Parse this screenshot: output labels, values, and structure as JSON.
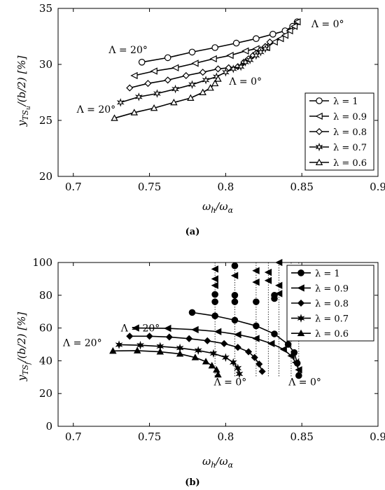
{
  "chart_data": [
    {
      "type": "line",
      "panel": "a",
      "caption": "(a)",
      "xlabel": "ω_h/ω_α",
      "ylabel": "y_TS_u/(b/2) [%]",
      "xlim": [
        0.69,
        0.9
      ],
      "ylim": [
        20,
        35
      ],
      "xticks": [
        0.7,
        0.75,
        0.8,
        0.85,
        0.9
      ],
      "xtick_labels": [
        "0.7",
        "0.75",
        "0.8",
        "0.85",
        "0.9"
      ],
      "yticks": [
        20,
        25,
        30,
        35
      ],
      "ytick_labels": [
        "20",
        "25",
        "30",
        "35"
      ],
      "legend_position": "center-right",
      "annotations": [
        {
          "text": "Λ = 20°",
          "x": 0.736,
          "y": 31.0
        },
        {
          "text": "Λ = 0°",
          "x": 0.867,
          "y": 33.3
        },
        {
          "text": "Λ = 0°",
          "x": 0.813,
          "y": 28.2
        },
        {
          "text": "Λ = 20°",
          "x": 0.715,
          "y": 25.7
        }
      ],
      "series": [
        {
          "name": "λ = 1",
          "marker": "circle",
          "x": [
            0.745,
            0.762,
            0.778,
            0.793,
            0.807,
            0.82,
            0.831,
            0.839,
            0.844,
            0.847
          ],
          "y": [
            30.2,
            30.6,
            31.1,
            31.5,
            31.9,
            32.3,
            32.7,
            33.0,
            33.4,
            33.8
          ]
        },
        {
          "name": "λ = 0.9",
          "marker": "triangle-left",
          "x": [
            0.74,
            0.753,
            0.767,
            0.78,
            0.792,
            0.803,
            0.813,
            0.82,
            0.827,
            0.832,
            0.836,
            0.839,
            0.842,
            0.845,
            0.847
          ],
          "y": [
            29.0,
            29.4,
            29.7,
            30.1,
            30.5,
            30.8,
            31.2,
            31.4,
            31.5,
            32.0,
            32.3,
            32.6,
            33.0,
            33.4,
            33.8
          ]
        },
        {
          "name": "λ = 0.8",
          "marker": "diamond",
          "x": [
            0.737,
            0.749,
            0.762,
            0.774,
            0.785,
            0.795,
            0.802,
            0.808,
            0.812,
            0.815,
            0.818,
            0.82,
            0.823,
            0.826,
            0.829
          ],
          "y": [
            27.9,
            28.3,
            28.6,
            29.0,
            29.3,
            29.6,
            29.7,
            29.8,
            30.2,
            30.5,
            30.8,
            31.0,
            31.3,
            31.6,
            32.0
          ]
        },
        {
          "name": "λ = 0.7",
          "marker": "hexstar",
          "x": [
            0.731,
            0.743,
            0.755,
            0.767,
            0.778,
            0.787,
            0.794,
            0.8,
            0.805,
            0.81,
            0.813,
            0.816,
            0.82,
            0.823,
            0.826
          ],
          "y": [
            26.6,
            27.1,
            27.4,
            27.8,
            28.2,
            28.6,
            28.9,
            29.3,
            29.6,
            29.8,
            30.2,
            30.4,
            30.8,
            31.1,
            31.4
          ]
        },
        {
          "name": "λ = 0.6",
          "marker": "triangle-up",
          "x": [
            0.727,
            0.74,
            0.753,
            0.766,
            0.777,
            0.785,
            0.79,
            0.793,
            0.795
          ],
          "y": [
            25.2,
            25.7,
            26.1,
            26.6,
            27.0,
            27.5,
            27.9,
            28.3,
            28.7
          ]
        }
      ]
    },
    {
      "type": "line",
      "panel": "b",
      "caption": "(b)",
      "xlabel": "ω_h/ω_α",
      "ylabel": "y_TS_f/(b/2) [%]",
      "xlim": [
        0.69,
        0.9
      ],
      "ylim": [
        0,
        100
      ],
      "xticks": [
        0.7,
        0.75,
        0.8,
        0.85,
        0.9
      ],
      "xtick_labels": [
        "0.7",
        "0.75",
        "0.8",
        "0.85",
        "0.9"
      ],
      "yticks": [
        0,
        20,
        40,
        60,
        80,
        100
      ],
      "ytick_labels": [
        "0",
        "20",
        "40",
        "60",
        "80",
        "100"
      ],
      "legend_position": "top-right",
      "annotations": [
        {
          "text": "Λ = 20°",
          "x": 0.744,
          "y": 58
        },
        {
          "text": "Λ = 20°",
          "x": 0.706,
          "y": 49
        },
        {
          "text": "Λ = 0°",
          "x": 0.803,
          "y": 25
        },
        {
          "text": "Λ = 0°",
          "x": 0.852,
          "y": 25
        }
      ],
      "series": [
        {
          "name": "λ = 1",
          "marker": "circle",
          "x": [
            0.778,
            0.793,
            0.806,
            0.82,
            0.832,
            0.841,
            0.845,
            0.847,
            0.848
          ],
          "y": [
            69.5,
            67.4,
            64.8,
            61.3,
            56.4,
            50.0,
            45.0,
            38.5,
            31.0
          ]
        },
        {
          "name": "λ = 0.9",
          "marker": "triangle-left",
          "x": [
            0.741,
            0.762,
            0.78,
            0.795,
            0.808,
            0.82,
            0.83,
            0.838,
            0.843,
            0.846,
            0.848
          ],
          "y": [
            60.0,
            59.8,
            59.0,
            57.8,
            56.0,
            53.6,
            50.5,
            47.0,
            43.0,
            39.0,
            34.5
          ]
        },
        {
          "name": "λ = 0.8",
          "marker": "diamond",
          "x": [
            0.737,
            0.75,
            0.763,
            0.776,
            0.788,
            0.799,
            0.808,
            0.815,
            0.819,
            0.822,
            0.824
          ],
          "y": [
            55.0,
            55.0,
            54.5,
            53.5,
            52.2,
            50.5,
            48.2,
            45.5,
            42.0,
            38.0,
            33.5
          ]
        },
        {
          "name": "λ = 0.7",
          "marker": "hexstar",
          "x": [
            0.73,
            0.744,
            0.757,
            0.77,
            0.782,
            0.792,
            0.8,
            0.805,
            0.808,
            0.809
          ],
          "y": [
            49.8,
            49.5,
            48.8,
            47.8,
            46.3,
            44.5,
            42.0,
            39.0,
            35.5,
            32.0
          ]
        },
        {
          "name": "λ = 0.6",
          "marker": "triangle-up",
          "x": [
            0.726,
            0.742,
            0.757,
            0.77,
            0.78,
            0.787,
            0.791,
            0.794,
            0.795
          ],
          "y": [
            46.0,
            46.2,
            45.5,
            44.2,
            42.0,
            39.5,
            37.0,
            34.5,
            31.5
          ]
        },
        {
          "name": "",
          "marker": "triangle-left",
          "label_in_legend": false,
          "x": [
            0.793,
            0.793,
            0.793,
            0.806,
            0.82,
            0.82,
            0.828,
            0.828,
            0.835,
            0.835,
            0.835
          ],
          "y": [
            96.0,
            90.0,
            86.0,
            92.0,
            88.0,
            95.0,
            89.0,
            94.0,
            100.0,
            86.0,
            81.0
          ]
        },
        {
          "name": "",
          "marker": "circle",
          "label_in_legend": false,
          "x": [
            0.793,
            0.793,
            0.806,
            0.806,
            0.806,
            0.82,
            0.832,
            0.832,
            0.843,
            0.848
          ],
          "y": [
            80.5,
            76.0,
            98.0,
            80.0,
            76.0,
            76.0,
            80.0,
            78.0,
            82.0,
            91.0
          ]
        }
      ],
      "dotted_connectors_x": [
        0.793,
        0.806,
        0.82,
        0.828,
        0.835,
        0.843,
        0.848
      ]
    }
  ]
}
